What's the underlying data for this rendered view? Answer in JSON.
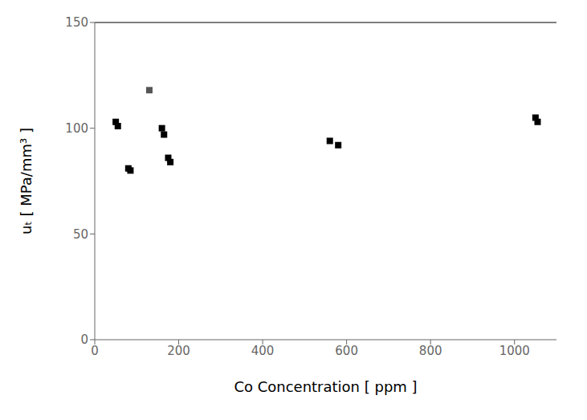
{
  "chart_data": {
    "type": "scatter",
    "xlabel": "Co Concentration [ ppm ]",
    "ylabel": "uₜ [ MPa/mm³ ]",
    "x": [
      50,
      55,
      80,
      85,
      130,
      160,
      165,
      175,
      180,
      560,
      580,
      1050,
      1055
    ],
    "values": [
      103,
      101,
      81,
      80,
      118,
      100,
      97,
      86,
      84,
      94,
      92,
      105,
      103
    ],
    "colors": [
      "#000000",
      "#000000",
      "#000000",
      "#000000",
      "#555555",
      "#000000",
      "#000000",
      "#000000",
      "#000000",
      "#000000",
      "#000000",
      "#000000",
      "#000000"
    ],
    "marker": "square",
    "xlim": [
      0,
      1100
    ],
    "ylim": [
      0,
      150
    ],
    "xticks": [
      0,
      200,
      400,
      600,
      800,
      1000
    ],
    "yticks": [
      0,
      50,
      100,
      150
    ],
    "hline": 150,
    "grid": false
  }
}
